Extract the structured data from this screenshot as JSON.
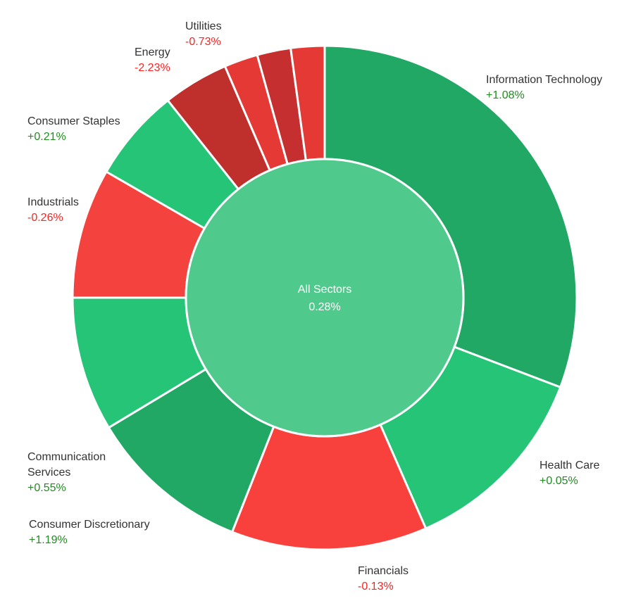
{
  "chart_data": {
    "type": "pie",
    "center": {
      "label": "All Sectors",
      "value": "0.28%"
    },
    "colors": {
      "positive_text": "#228b22",
      "negative_text": "#ff2222"
    },
    "sectors": [
      {
        "name": "Information Technology",
        "change": "+1.08%",
        "weight": 31.4,
        "color": "#21a865"
      },
      {
        "name": "Health Care",
        "change": "+0.05%",
        "weight": 12.9,
        "color": "#25c477"
      },
      {
        "name": "Financials",
        "change": "-0.13%",
        "weight": 12.8,
        "color": "#f8403d"
      },
      {
        "name": "Consumer Discretionary",
        "change": "+1.19%",
        "weight": 10.6,
        "color": "#21a865"
      },
      {
        "name": "Communication Services",
        "change": "+0.55%",
        "weight": 8.8,
        "color": "#25c477"
      },
      {
        "name": "Industrials",
        "change": "-0.26%",
        "weight": 8.5,
        "color": "#f4433e"
      },
      {
        "name": "Consumer Staples",
        "change": "+0.21%",
        "weight": 6.1,
        "color": "#25c477"
      },
      {
        "name": "Energy",
        "change": "-2.23%",
        "weight": 4.3,
        "color": "#bf302d"
      },
      {
        "name": "",
        "change": "",
        "weight": 2.2,
        "color": "#e53935"
      },
      {
        "name": "",
        "change": "",
        "weight": 2.2,
        "color": "#c62f2f"
      },
      {
        "name": "Utilities",
        "change": "-0.73%",
        "weight": 2.2,
        "color": "#e53935"
      }
    ]
  }
}
